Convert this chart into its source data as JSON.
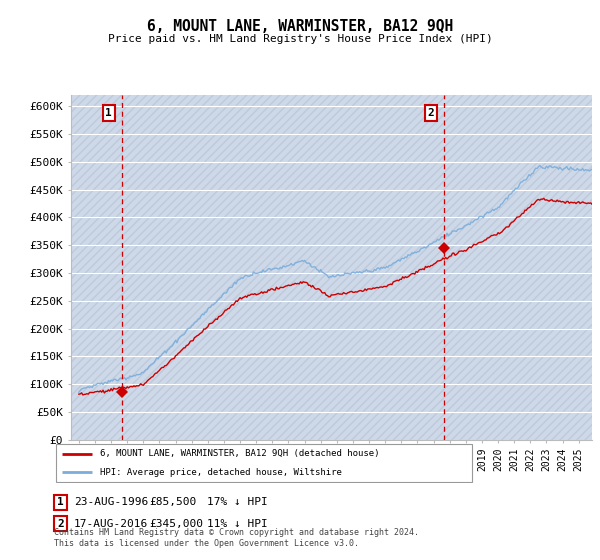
{
  "title": "6, MOUNT LANE, WARMINSTER, BA12 9QH",
  "subtitle": "Price paid vs. HM Land Registry's House Price Index (HPI)",
  "ylabel_ticks": [
    "£0",
    "£50K",
    "£100K",
    "£150K",
    "£200K",
    "£250K",
    "£300K",
    "£350K",
    "£400K",
    "£450K",
    "£500K",
    "£550K",
    "£600K"
  ],
  "ylim": [
    0,
    620000
  ],
  "ytick_values": [
    0,
    50000,
    100000,
    150000,
    200000,
    250000,
    300000,
    350000,
    400000,
    450000,
    500000,
    550000,
    600000
  ],
  "xlim_left": 1993.5,
  "xlim_right": 2025.8,
  "sale1_date": 1996.65,
  "sale1_price": 85500,
  "sale1_label": "1",
  "sale2_date": 2016.65,
  "sale2_price": 345000,
  "sale2_label": "2",
  "red_line_color": "#cc0000",
  "blue_line_color": "#7aaddb",
  "marker_color": "#cc0000",
  "dashed_line_color": "#cc0000",
  "plot_bg_color": "#dce6f0",
  "grid_color": "#ffffff",
  "legend1_text": "6, MOUNT LANE, WARMINSTER, BA12 9QH (detached house)",
  "legend2_text": "HPI: Average price, detached house, Wiltshire",
  "table_row1": [
    "1",
    "23-AUG-1996",
    "£85,500",
    "17% ↓ HPI"
  ],
  "table_row2": [
    "2",
    "17-AUG-2016",
    "£345,000",
    "11% ↓ HPI"
  ],
  "footnote": "Contains HM Land Registry data © Crown copyright and database right 2024.\nThis data is licensed under the Open Government Licence v3.0."
}
